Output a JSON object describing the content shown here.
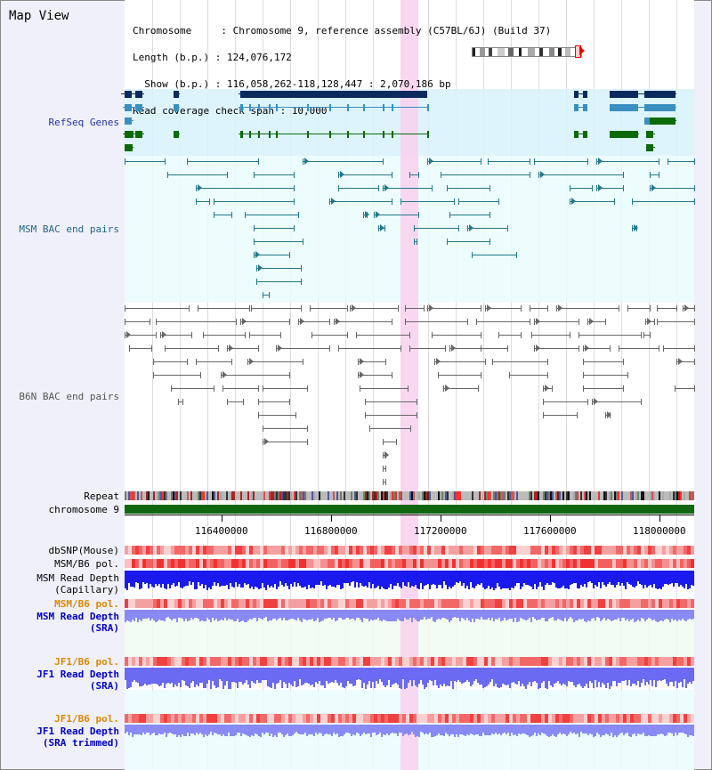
{
  "title": "Map View",
  "info": {
    "line1": "Chromosome     : Chromosome 9, reference assembly (C57BL/6J) (Build 37)",
    "line2": "Length (b.p.) : 124,076,172",
    "line3": "  Show (b.p.) : 116,058,262-118,128,447 : 2,070,186 bp",
    "line4": "Read coverage check span : 10,000"
  },
  "tracks": {
    "refseq": "RefSeq Genes",
    "msm_bac": "MSM BAC end pairs",
    "b6n_bac": "B6N BAC end pairs",
    "repeat": "Repeat",
    "chromosome": "chromosome 9",
    "dbsnp": "dbSNP(Mouse)",
    "msm_b6_pol": "MSM/B6 pol.",
    "msm_depth_cap_1": "MSM Read Depth",
    "msm_depth_cap_2": "(Capillary)",
    "msm_b6_pol2": "MSM/B6 pol.",
    "msm_depth_sra_1": "MSM Read Depth",
    "msm_depth_sra_2": "(SRA)",
    "jf1_b6_pol": "JF1/B6 pol.",
    "jf1_depth_sra_1": "JF1 Read Depth",
    "jf1_depth_sra_2": "(SRA)",
    "jf1_b6_pol2": "JF1/B6 pol.",
    "jf1_depth_trim_1": "JF1 Read Depth",
    "jf1_depth_trim_2": "(SRA trimmed)"
  },
  "ruler": {
    "labels": [
      "116400000",
      "116800000",
      "117200000",
      "117600000",
      "118000000"
    ]
  },
  "colors": {
    "refseq_dark": "#0b2a5e",
    "refseq_light": "#3a8fbf",
    "refseq_green": "#0a6a0a",
    "msm_bac": "#22788a",
    "b6n_bac": "#666666",
    "highlight": "#f9d0ee",
    "chromosome": "#116611",
    "depth_dark": "#1a1aee",
    "depth_light": "#8a8af5"
  }
}
